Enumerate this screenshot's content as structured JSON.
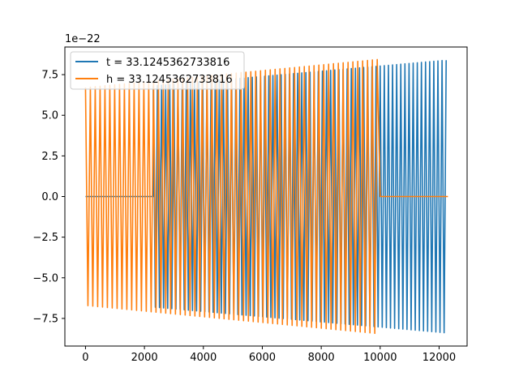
{
  "chart_data": {
    "type": "line",
    "title": "",
    "xlabel": "",
    "ylabel": "",
    "xlim": [
      -700,
      12950
    ],
    "ylim": [
      -9.2,
      9.2
    ],
    "y_offset_label": "1e−22",
    "x_ticks": [
      0,
      2000,
      4000,
      6000,
      8000,
      10000,
      12000
    ],
    "x_tick_labels": [
      "0",
      "2000",
      "4000",
      "6000",
      "8000",
      "10000",
      "12000"
    ],
    "y_ticks": [
      -7.5,
      -5.0,
      -2.5,
      0.0,
      2.5,
      5.0,
      7.5
    ],
    "y_tick_labels": [
      "−7.5",
      "−5.0",
      "−2.5",
      "0.0",
      "2.5",
      "5.0",
      "7.5"
    ],
    "grid": false,
    "legend_position": "upper-left",
    "series": [
      {
        "name": "t = 33.1245362733816",
        "color": "#1f77b4",
        "zero_until": 2300,
        "signal_start": 2300,
        "signal_end": 12300,
        "amplitude_start": 6.8,
        "amplitude_end": 8.4,
        "period": 140
      },
      {
        "name": "h = 33.1245362733816",
        "color": "#ff7f0e",
        "signal_start": 0,
        "signal_end": 10000,
        "zero_after": 10000,
        "zero_until_end": 12300,
        "amplitude_start": 6.7,
        "amplitude_end": 8.45,
        "period": 165
      }
    ]
  }
}
